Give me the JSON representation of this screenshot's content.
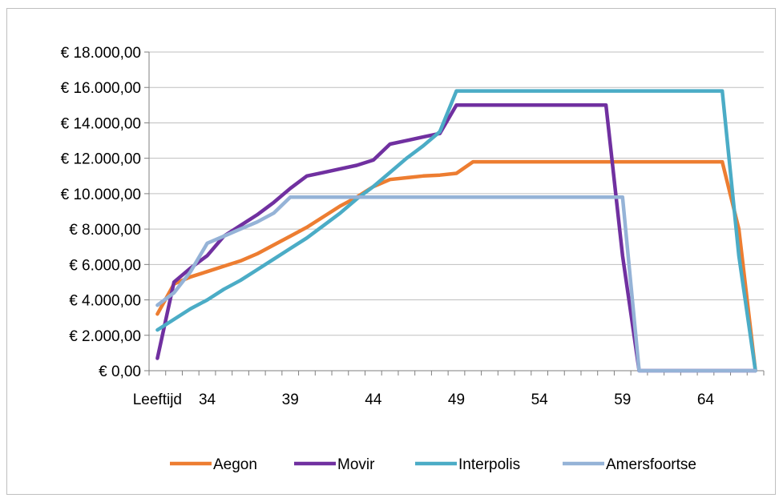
{
  "chart_data": {
    "type": "line",
    "title": "",
    "xlabel": "",
    "ylabel": "",
    "first_x_label": "Leeftijd",
    "x": [
      31,
      32,
      33,
      34,
      35,
      36,
      37,
      38,
      39,
      40,
      41,
      42,
      43,
      44,
      45,
      46,
      47,
      48,
      49,
      50,
      51,
      52,
      53,
      54,
      55,
      56,
      57,
      58,
      59,
      60,
      61,
      62,
      63,
      64,
      65,
      66,
      67
    ],
    "x_ticks": [
      34,
      39,
      44,
      49,
      54,
      59,
      64
    ],
    "xlim": [
      30.5,
      67.5
    ],
    "ylim": [
      0,
      18000
    ],
    "y_ticks": [
      0,
      2000,
      4000,
      6000,
      8000,
      10000,
      12000,
      14000,
      16000,
      18000
    ],
    "y_tick_labels": [
      "€ 0,00",
      "€ 2.000,00",
      "€ 4.000,00",
      "€ 6.000,00",
      "€ 8.000,00",
      "€ 10.000,00",
      "€ 12.000,00",
      "€ 14.000,00",
      "€ 16.000,00",
      "€ 18.000,00"
    ],
    "grid": "horizontal",
    "legend_position": "bottom",
    "series": [
      {
        "name": "Aegon",
        "color": "#ed7d31",
        "values": [
          3200,
          4900,
          5300,
          5600,
          5900,
          6200,
          6600,
          7100,
          7600,
          8100,
          8700,
          9300,
          9800,
          10400,
          10800,
          10900,
          11000,
          11050,
          11150,
          11800,
          11800,
          11800,
          11800,
          11800,
          11800,
          11800,
          11800,
          11800,
          11800,
          11800,
          11800,
          11800,
          11800,
          11800,
          11800,
          8000,
          0
        ]
      },
      {
        "name": "Movir",
        "color": "#7030a0",
        "values": [
          700,
          5000,
          5800,
          6500,
          7600,
          8200,
          8800,
          9500,
          10300,
          11000,
          11200,
          11400,
          11600,
          11900,
          12800,
          13000,
          13200,
          13400,
          15000,
          15000,
          15000,
          15000,
          15000,
          15000,
          15000,
          15000,
          15000,
          15000,
          6500,
          0,
          0,
          0,
          0,
          0,
          0,
          0,
          0
        ]
      },
      {
        "name": "Interpolis",
        "color": "#4bacc6",
        "values": [
          2300,
          2900,
          3500,
          4000,
          4600,
          5100,
          5700,
          6300,
          6900,
          7500,
          8200,
          8900,
          9700,
          10400,
          11200,
          12000,
          12700,
          13500,
          15800,
          15800,
          15800,
          15800,
          15800,
          15800,
          15800,
          15800,
          15800,
          15800,
          15800,
          15800,
          15800,
          15800,
          15800,
          15800,
          15800,
          6500,
          0
        ]
      },
      {
        "name": "Amersfoortse",
        "color": "#95b3d7",
        "values": [
          3700,
          4400,
          5600,
          7200,
          7600,
          8000,
          8400,
          8900,
          9800,
          9800,
          9800,
          9800,
          9800,
          9800,
          9800,
          9800,
          9800,
          9800,
          9800,
          9800,
          9800,
          9800,
          9800,
          9800,
          9800,
          9800,
          9800,
          9800,
          9800,
          0,
          0,
          0,
          0,
          0,
          0,
          0,
          0
        ]
      }
    ]
  }
}
